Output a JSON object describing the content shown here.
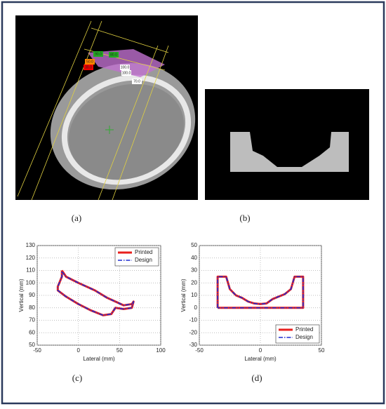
{
  "panels": {
    "a": {
      "label": "(a)",
      "dose_labels": [
        "90.0",
        "80.0",
        "50.0",
        "30.0",
        "100.0",
        "100.0",
        "70.0"
      ]
    },
    "b": {
      "label": "(b)"
    },
    "c": {
      "label": "(c)"
    },
    "d": {
      "label": "(d)"
    }
  },
  "chart_data": [
    {
      "type": "line",
      "xlabel": "Lateral (mm)",
      "ylabel": "Vertical (mm)",
      "x": [
        -20,
        -15,
        0,
        20,
        35,
        45,
        55,
        65,
        67,
        65,
        55,
        45,
        40,
        30,
        15,
        0,
        -15,
        -25,
        -25,
        -20,
        -20
      ],
      "series": [
        {
          "name": "Printed",
          "color": "#e8201e",
          "linestyle": "solid",
          "values": [
            110,
            105,
            100,
            94,
            88,
            85,
            82,
            83,
            85,
            80,
            79,
            80,
            75,
            74,
            78,
            83,
            89,
            94,
            97,
            105,
            110
          ]
        },
        {
          "name": "Design",
          "color": "#1f2cd0",
          "linestyle": "dashdot",
          "values": [
            109,
            105,
            100,
            94,
            88,
            85,
            82,
            83,
            85,
            80,
            79,
            80,
            75,
            74,
            78,
            83,
            89,
            94,
            97,
            105,
            109
          ]
        }
      ],
      "xlim": [
        -50,
        100
      ],
      "xticks": [
        -50,
        0,
        50,
        100
      ],
      "ylim": [
        50,
        130
      ],
      "yticks": [
        50,
        60,
        70,
        80,
        90,
        100,
        110,
        120,
        130
      ],
      "grid": true,
      "legend": "upper right"
    },
    {
      "type": "line",
      "xlabel": "Lateral (mm)",
      "ylabel": "Vertical (mm)",
      "x": [
        -35,
        -35,
        -28,
        -25,
        -20,
        -15,
        -10,
        -5,
        0,
        5,
        10,
        15,
        20,
        25,
        28,
        35,
        35,
        -35
      ],
      "series": [
        {
          "name": "Printed",
          "color": "#e8201e",
          "linestyle": "solid",
          "values": [
            0,
            25,
            25,
            15,
            10,
            8,
            5,
            3.5,
            3,
            3.5,
            7,
            9,
            11,
            15,
            25,
            25,
            0,
            0
          ]
        },
        {
          "name": "Design",
          "color": "#1f2cd0",
          "linestyle": "dashdot",
          "values": [
            0,
            25,
            25,
            15,
            10,
            8,
            5,
            3.5,
            3,
            3.5,
            7,
            9,
            11,
            15,
            25,
            25,
            0,
            0
          ]
        }
      ],
      "xlim": [
        -50,
        50
      ],
      "xticks": [
        -50,
        0,
        50
      ],
      "ylim": [
        -30,
        50
      ],
      "yticks": [
        -30,
        -20,
        -10,
        0,
        10,
        20,
        30,
        40,
        50
      ],
      "grid": true,
      "legend": "lower right"
    }
  ]
}
